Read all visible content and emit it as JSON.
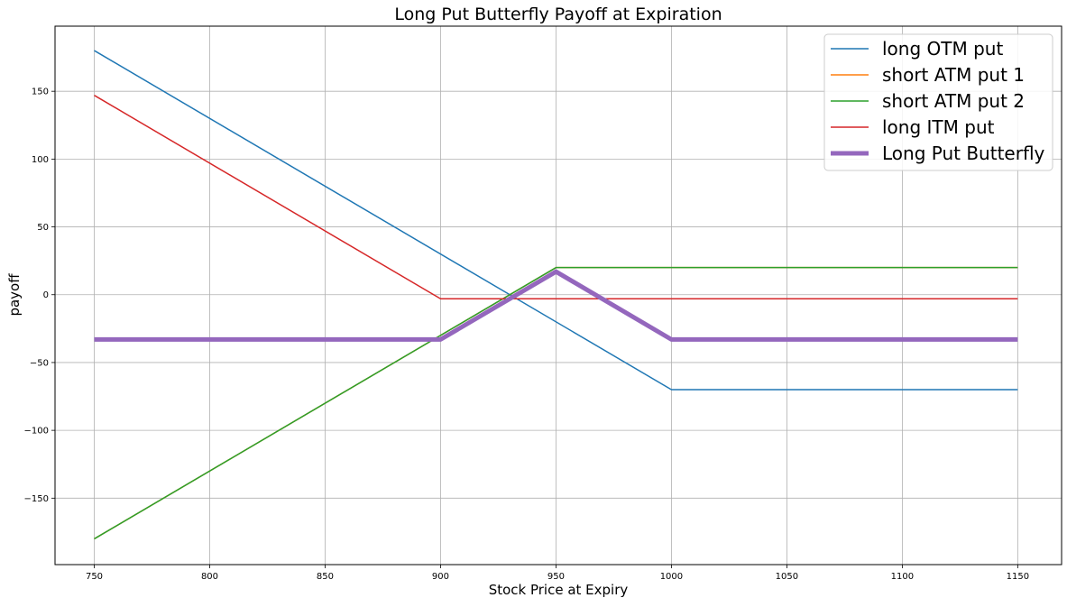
{
  "chart_data": {
    "type": "line",
    "title": "Long Put Butterfly Payoff at Expiration",
    "xlabel": "Stock Price at Expiry",
    "ylabel": "payoff",
    "xlim": [
      733,
      1169
    ],
    "ylim": [
      -199,
      198
    ],
    "xticks": [
      750,
      800,
      850,
      900,
      950,
      1000,
      1050,
      1100,
      1150
    ],
    "yticks": [
      -150,
      -100,
      -50,
      0,
      50,
      100,
      150
    ],
    "grid": true,
    "legend_position": "top-right",
    "series": [
      {
        "name": "long OTM put",
        "color": "#1f77b4",
        "line_width": 1.5,
        "x": [
          750,
          1000,
          1150
        ],
        "y": [
          180,
          -70,
          -70
        ]
      },
      {
        "name": "short ATM put 1",
        "color": "#ff7f0e",
        "line_width": 1.5,
        "x": [
          750,
          950,
          1150
        ],
        "y": [
          -180,
          20,
          20
        ]
      },
      {
        "name": "short ATM put 2",
        "color": "#2ca02c",
        "line_width": 1.5,
        "x": [
          750,
          950,
          1150
        ],
        "y": [
          -180,
          20,
          20
        ]
      },
      {
        "name": "long ITM put",
        "color": "#d62728",
        "line_width": 1.5,
        "x": [
          750,
          900,
          1150
        ],
        "y": [
          147,
          -3,
          -3
        ]
      },
      {
        "name": "Long Put Butterfly",
        "color": "#9467bd",
        "line_width": 5,
        "x": [
          750,
          900,
          950,
          1000,
          1150
        ],
        "y": [
          -33,
          -33,
          17,
          -33,
          -33
        ]
      }
    ]
  }
}
